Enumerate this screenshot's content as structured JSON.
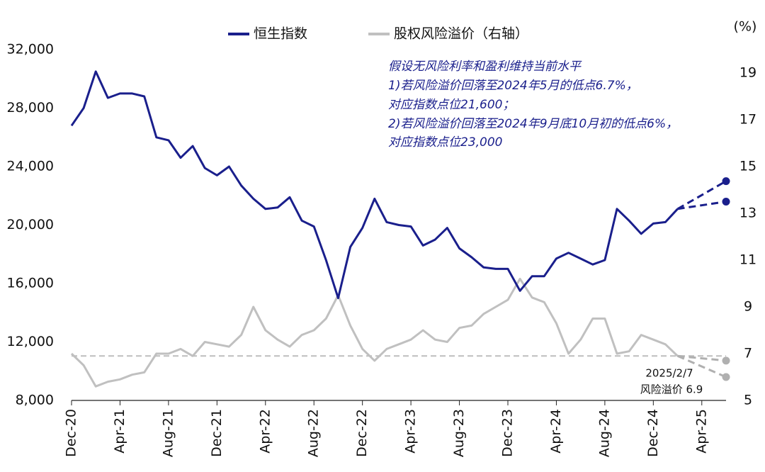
{
  "chart_data": {
    "type": "line",
    "legend": [
      "恒生指数",
      "股权风险溢价（右轴）"
    ],
    "y2_label": "(%)",
    "annotation_lines": [
      "假设无风险利率和盈利维持当前水平",
      "1)若风险溢价回落至2024年5月的低点6.7%，",
      "对应指数点位21,600；",
      "2)若风险溢价回落至2024年9月底10月初的低点6%，",
      "对应指数点位23,000"
    ],
    "point_note": [
      "2025/2/7",
      "风险溢价 6.9"
    ],
    "reference_line": {
      "value": 6.9,
      "axis": "y2",
      "color": "#bdbdbd"
    },
    "categories": [
      "Dec-20",
      null,
      null,
      null,
      "Apr-21",
      null,
      null,
      null,
      "Aug-21",
      null,
      null,
      null,
      "Dec-21",
      null,
      null,
      null,
      "Apr-22",
      null,
      null,
      null,
      "Aug-22",
      null,
      null,
      null,
      "Dec-22",
      null,
      null,
      null,
      "Apr-23",
      null,
      null,
      null,
      "Aug-23",
      null,
      null,
      null,
      "Dec-23",
      null,
      null,
      null,
      "Apr-24",
      null,
      null,
      null,
      "Aug-24",
      null,
      null,
      null,
      "Dec-24",
      null,
      null,
      null,
      "Apr-25",
      null,
      null
    ],
    "series": [
      {
        "name": "恒生指数",
        "color": "#1a1f8c",
        "axis": "y",
        "values": [
          26800,
          28000,
          30500,
          28700,
          29000,
          29000,
          28800,
          26000,
          25800,
          24600,
          25400,
          23900,
          23400,
          24000,
          22700,
          21800,
          21100,
          21200,
          21900,
          20300,
          19900,
          17600,
          15000,
          18500,
          19800,
          21800,
          20200,
          20000,
          19900,
          18600,
          19000,
          19800,
          18400,
          17800,
          17100,
          17000,
          17000,
          15500,
          16500,
          16500,
          17700,
          18100,
          17700,
          17300,
          17600,
          21100,
          20300,
          19400,
          20100,
          20200,
          21100,
          null,
          null,
          null,
          null
        ]
      },
      {
        "name": "股权风险溢价（右轴）",
        "color": "#c0c0c0",
        "axis": "y2",
        "values": [
          7.0,
          6.5,
          5.6,
          5.8,
          5.9,
          6.1,
          6.2,
          7.0,
          7.0,
          7.2,
          6.9,
          7.5,
          7.4,
          7.3,
          7.8,
          9.0,
          8.0,
          7.6,
          7.3,
          7.8,
          8.0,
          8.5,
          9.5,
          8.2,
          7.2,
          6.7,
          7.2,
          7.4,
          7.6,
          8.0,
          7.6,
          7.5,
          8.1,
          8.2,
          8.7,
          9.0,
          9.3,
          10.2,
          9.4,
          9.2,
          8.3,
          7.0,
          7.6,
          8.5,
          8.5,
          7.0,
          7.1,
          7.8,
          7.6,
          7.4,
          6.9,
          null,
          null,
          null,
          null
        ]
      },
      {
        "color": "#1a1f8c",
        "axis": "y",
        "dashed": true,
        "values": [
          null,
          null,
          null,
          null,
          null,
          null,
          null,
          null,
          null,
          null,
          null,
          null,
          null,
          null,
          null,
          null,
          null,
          null,
          null,
          null,
          null,
          null,
          null,
          null,
          null,
          null,
          null,
          null,
          null,
          null,
          null,
          null,
          null,
          null,
          null,
          null,
          null,
          null,
          null,
          null,
          null,
          null,
          null,
          null,
          null,
          null,
          null,
          null,
          null,
          null,
          21100,
          null,
          null,
          null,
          21600
        ]
      },
      {
        "color": "#1a1f8c",
        "axis": "y",
        "dashed": true,
        "values": [
          null,
          null,
          null,
          null,
          null,
          null,
          null,
          null,
          null,
          null,
          null,
          null,
          null,
          null,
          null,
          null,
          null,
          null,
          null,
          null,
          null,
          null,
          null,
          null,
          null,
          null,
          null,
          null,
          null,
          null,
          null,
          null,
          null,
          null,
          null,
          null,
          null,
          null,
          null,
          null,
          null,
          null,
          null,
          null,
          null,
          null,
          null,
          null,
          null,
          null,
          21100,
          null,
          null,
          null,
          23000
        ]
      },
      {
        "color": "#b0b0b0",
        "axis": "y2",
        "dashed": true,
        "values": [
          null,
          null,
          null,
          null,
          null,
          null,
          null,
          null,
          null,
          null,
          null,
          null,
          null,
          null,
          null,
          null,
          null,
          null,
          null,
          null,
          null,
          null,
          null,
          null,
          null,
          null,
          null,
          null,
          null,
          null,
          null,
          null,
          null,
          null,
          null,
          null,
          null,
          null,
          null,
          null,
          null,
          null,
          null,
          null,
          null,
          null,
          null,
          null,
          null,
          null,
          6.9,
          null,
          null,
          null,
          6.7
        ]
      },
      {
        "color": "#b0b0b0",
        "axis": "y2",
        "dashed": true,
        "values": [
          null,
          null,
          null,
          null,
          null,
          null,
          null,
          null,
          null,
          null,
          null,
          null,
          null,
          null,
          null,
          null,
          null,
          null,
          null,
          null,
          null,
          null,
          null,
          null,
          null,
          null,
          null,
          null,
          null,
          null,
          null,
          null,
          null,
          null,
          null,
          null,
          null,
          null,
          null,
          null,
          null,
          null,
          null,
          null,
          null,
          null,
          null,
          null,
          null,
          null,
          6.9,
          null,
          null,
          null,
          6.0
        ]
      }
    ],
    "ylim": [
      8000,
      32000
    ],
    "yticks": [
      {
        "value": 8000,
        "label": "8,000"
      },
      {
        "value": 12000,
        "label": "12,000"
      },
      {
        "value": 16000,
        "label": "16,000"
      },
      {
        "value": 20000,
        "label": "20,000"
      },
      {
        "value": 24000,
        "label": "24,000"
      },
      {
        "value": 28000,
        "label": "28,000"
      },
      {
        "value": 32000,
        "label": "32,000"
      }
    ],
    "y2lim": [
      5,
      20
    ],
    "y2ticks": [
      5,
      7,
      9,
      11,
      13,
      15,
      17,
      19
    ]
  }
}
